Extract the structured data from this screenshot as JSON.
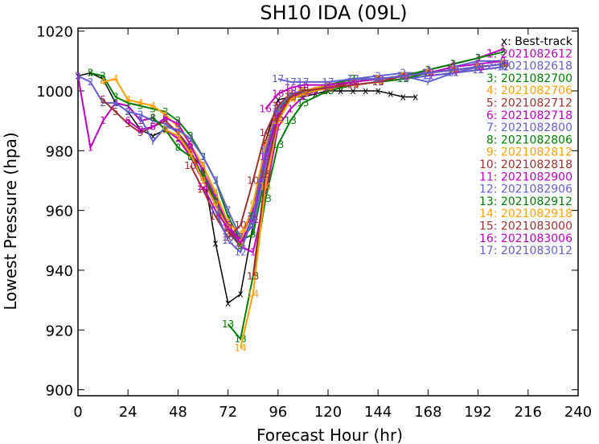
{
  "chart_data": {
    "type": "line",
    "title": "SH10  IDA (09L)",
    "xlabel": "Forecast Hour (hr)",
    "ylabel": "Lowest Pressure (hpa)",
    "xlim": [
      0,
      240
    ],
    "ylim": [
      898,
      1021
    ],
    "xticks": [
      0,
      24,
      48,
      72,
      96,
      120,
      144,
      168,
      192,
      216,
      240
    ],
    "xtick_labels": [
      "0",
      "24",
      "48",
      "72",
      "96",
      "120",
      "144",
      "168",
      "192",
      "216",
      "240"
    ],
    "yticks": [
      900,
      920,
      940,
      960,
      980,
      1000,
      1020
    ],
    "ytick_labels": [
      "900",
      "920",
      "940",
      "960",
      "980",
      "1000",
      "1020"
    ],
    "grid": false,
    "legend_position": "top-right",
    "series": [
      {
        "name": "x: Best-track",
        "marker": "x",
        "color": "#000000",
        "x": [
          0,
          6,
          12,
          18,
          24,
          30,
          36,
          42,
          48,
          54,
          60,
          66,
          72,
          78,
          84,
          90,
          96,
          102,
          108,
          114,
          120,
          126,
          132,
          138,
          144,
          150,
          156,
          162
        ],
        "y": [
          1005,
          1006,
          1004,
          996,
          993,
          987,
          985,
          987,
          984,
          979,
          974,
          949,
          929,
          932,
          955,
          983,
          997,
          998,
          998,
          999,
          1000,
          1000,
          1000,
          1000,
          1000,
          999,
          998,
          998
        ]
      },
      {
        "name": "1: 2021082612",
        "marker": "1",
        "color": "#C000C0",
        "x": [
          0,
          6,
          12,
          18,
          24,
          30,
          36,
          42,
          48,
          54,
          60,
          66,
          72,
          78,
          84,
          90,
          96,
          102,
          108,
          114,
          120,
          132,
          144,
          156,
          168,
          180,
          192,
          204
        ],
        "y": [
          1005,
          981,
          990,
          996,
          995,
          990,
          991,
          987,
          984,
          978,
          970,
          962,
          955,
          948,
          946,
          965,
          988,
          994,
          998,
          1000,
          1001,
          1003,
          1004,
          1005,
          1007,
          1009,
          1011,
          1014
        ]
      },
      {
        "name": "2: 2021082618",
        "marker": "2",
        "color": "#6060D0",
        "x": [
          0,
          6,
          12,
          18,
          24,
          30,
          36,
          42,
          48,
          54,
          60,
          66,
          72,
          78,
          84,
          90,
          96,
          102,
          108,
          120,
          132,
          144,
          156,
          168,
          180,
          192,
          204
        ],
        "y": [
          1005,
          1003,
          996,
          996,
          993,
          992,
          990,
          989,
          986,
          981,
          975,
          965,
          954,
          950,
          955,
          975,
          994,
          998,
          1000,
          1002,
          1004,
          1005,
          1006,
          1006,
          1008,
          1010,
          1010
        ]
      },
      {
        "name": "3: 2021082700",
        "marker": "3",
        "color": "#008000",
        "x": [
          6,
          12,
          18,
          24,
          30,
          36,
          42,
          48,
          54,
          60,
          66,
          72,
          78,
          84,
          90,
          96,
          102,
          108,
          120,
          132,
          144,
          156,
          168,
          180,
          192,
          204
        ],
        "y": [
          1006,
          1005,
          998,
          996,
          995,
          994,
          993,
          990,
          985,
          978,
          970,
          958,
          950,
          952,
          972,
          992,
          998,
          999,
          1002,
          1004,
          1004,
          1005,
          1007,
          1009,
          1011,
          1013
        ]
      },
      {
        "name": "4: 2021082706",
        "marker": "4",
        "color": "#FFA000",
        "x": [
          12,
          18,
          24,
          30,
          36,
          42,
          48,
          54,
          60,
          66,
          72,
          78,
          84,
          90,
          96,
          102,
          108,
          120,
          132,
          144,
          156,
          168,
          180,
          192,
          204
        ],
        "y": [
          1003,
          1004,
          997,
          996,
          995,
          992,
          988,
          982,
          975,
          966,
          956,
          952,
          960,
          980,
          994,
          998,
          1000,
          1002,
          1003,
          1004,
          1005,
          1006,
          1007,
          1008,
          1009
        ]
      },
      {
        "name": "5: 2021082712",
        "marker": "5",
        "color": "#A03030",
        "x": [
          12,
          18,
          24,
          30,
          36,
          42,
          48,
          54,
          60,
          66,
          72,
          78,
          84,
          90,
          96,
          102,
          108,
          120,
          132,
          144,
          156,
          168,
          180,
          192,
          204
        ],
        "y": [
          997,
          993,
          989,
          986,
          988,
          990,
          986,
          980,
          971,
          962,
          953,
          948,
          958,
          978,
          993,
          998,
          1000,
          1001,
          1003,
          1004,
          1005,
          1006,
          1007,
          1008,
          1009
        ]
      },
      {
        "name": "6: 2021082718",
        "marker": "6",
        "color": "#C000C0",
        "x": [
          24,
          30,
          36,
          42,
          48,
          54,
          60,
          66,
          72,
          78,
          84,
          90,
          96,
          102,
          108,
          120,
          132,
          144,
          156,
          168,
          180,
          192,
          204
        ],
        "y": [
          990,
          987,
          988,
          991,
          989,
          982,
          973,
          964,
          955,
          950,
          960,
          982,
          995,
          999,
          1000,
          1001,
          1003,
          1004,
          1005,
          1006,
          1008,
          1009,
          1010
        ]
      },
      {
        "name": "7: 2021082800",
        "marker": "7",
        "color": "#6060D0",
        "x": [
          30,
          36,
          42,
          48,
          54,
          60,
          66,
          72,
          78,
          84,
          90,
          96,
          102,
          108,
          120,
          132,
          144,
          156,
          168,
          180,
          192,
          204
        ],
        "y": [
          991,
          983,
          988,
          987,
          984,
          978,
          970,
          960,
          951,
          955,
          975,
          992,
          998,
          1000,
          1001,
          1003,
          1004,
          1005,
          1003,
          1006,
          1008,
          1009
        ]
      },
      {
        "name": "8: 2021082806",
        "marker": "8",
        "color": "#008000",
        "x": [
          36,
          42,
          48,
          54,
          60,
          66,
          72,
          78,
          84,
          90,
          96,
          102,
          108,
          120,
          132,
          144,
          156,
          168,
          180,
          192,
          204
        ],
        "y": [
          991,
          987,
          981,
          978,
          972,
          963,
          954,
          948,
          958,
          980,
          994,
          998,
          1000,
          1002,
          1003,
          1004,
          1005,
          1006,
          1007,
          1008,
          1009
        ]
      },
      {
        "name": "9: 2021082812",
        "marker": "9",
        "color": "#FFA000",
        "x": [
          42,
          48,
          54,
          60,
          66,
          72,
          78,
          84,
          90,
          96,
          102,
          108,
          120,
          132,
          144,
          156,
          168,
          180,
          192,
          204
        ],
        "y": [
          987,
          985,
          979,
          970,
          962,
          954,
          949,
          962,
          982,
          994,
          999,
          1000,
          1002,
          1003,
          1004,
          1005,
          1006,
          1007,
          1008,
          1009
        ]
      },
      {
        "name": "10: 2021082818",
        "marker": "10",
        "color": "#A03030",
        "x": [
          54,
          60,
          66,
          72,
          78,
          84,
          90,
          96,
          102,
          108,
          120,
          132,
          144,
          156,
          168,
          180,
          192,
          204
        ],
        "y": [
          975,
          967,
          958,
          951,
          955,
          970,
          986,
          995,
          999,
          1000,
          1001,
          1003,
          1004,
          1005,
          1006,
          1007,
          1008,
          1009
        ]
      },
      {
        "name": "11: 2021082900",
        "marker": "11",
        "color": "#C000C0",
        "x": [
          60,
          66,
          72,
          78,
          84,
          90,
          96,
          102,
          108,
          120,
          132,
          144,
          156,
          168,
          180,
          192,
          204
        ],
        "y": [
          968,
          960,
          954,
          949,
          957,
          978,
          992,
          998,
          999,
          1001,
          1002,
          1003,
          1004,
          1005,
          1006,
          1007,
          1008
        ]
      },
      {
        "name": "12: 2021082906",
        "marker": "12",
        "color": "#6060D0",
        "x": [
          66,
          72,
          78,
          84,
          90,
          96,
          102,
          108,
          120,
          132,
          144,
          156,
          168,
          180,
          192,
          204
        ],
        "y": [
          960,
          950,
          946,
          958,
          980,
          994,
          999,
          1000,
          1001,
          1002,
          1003,
          1004,
          1005,
          1006,
          1007,
          1008
        ]
      },
      {
        "name": "13: 2021082912",
        "marker": "13",
        "color": "#008000",
        "x": [
          72,
          78,
          84,
          90,
          96,
          102,
          108,
          120,
          132,
          144,
          156,
          168,
          180,
          192,
          204
        ],
        "y": [
          922,
          917,
          938,
          964,
          982,
          990,
          996,
          1000,
          1002,
          1003,
          1004,
          1006,
          1007,
          1008,
          1009
        ]
      },
      {
        "name": "14: 2021082918",
        "marker": "14",
        "color": "#FFA000",
        "x": [
          78,
          84,
          90,
          96,
          102,
          108,
          120,
          132,
          144,
          156,
          168,
          180,
          192,
          204
        ],
        "y": [
          914,
          932,
          968,
          990,
          997,
          999,
          1001,
          1002,
          1003,
          1005,
          1006,
          1007,
          1008,
          1009
        ]
      },
      {
        "name": "15: 2021083000",
        "marker": "15",
        "color": "#A03030",
        "x": [
          84,
          90,
          96,
          102,
          108,
          120,
          132,
          144,
          156,
          168,
          180,
          192,
          204
        ],
        "y": [
          938,
          972,
          991,
          998,
          1000,
          1001,
          1002,
          1003,
          1005,
          1006,
          1007,
          1008,
          1009
        ]
      },
      {
        "name": "16: 2021083006",
        "marker": "16",
        "color": "#C000C0",
        "x": [
          90,
          96,
          102,
          108,
          120,
          132,
          144,
          156,
          168,
          180,
          192,
          204
        ],
        "y": [
          994,
          999,
          1001,
          1002,
          1002,
          1003,
          1004,
          1005,
          1006,
          1007,
          1008,
          1009
        ]
      },
      {
        "name": "17: 2021083012",
        "marker": "17",
        "color": "#6060D0",
        "x": [
          96,
          102,
          108,
          120,
          132,
          144,
          156,
          168,
          180,
          192,
          204
        ],
        "y": [
          1004,
          1003,
          1003,
          1003,
          1004,
          1004,
          1005,
          1006,
          1007,
          1008,
          1009
        ]
      }
    ]
  }
}
